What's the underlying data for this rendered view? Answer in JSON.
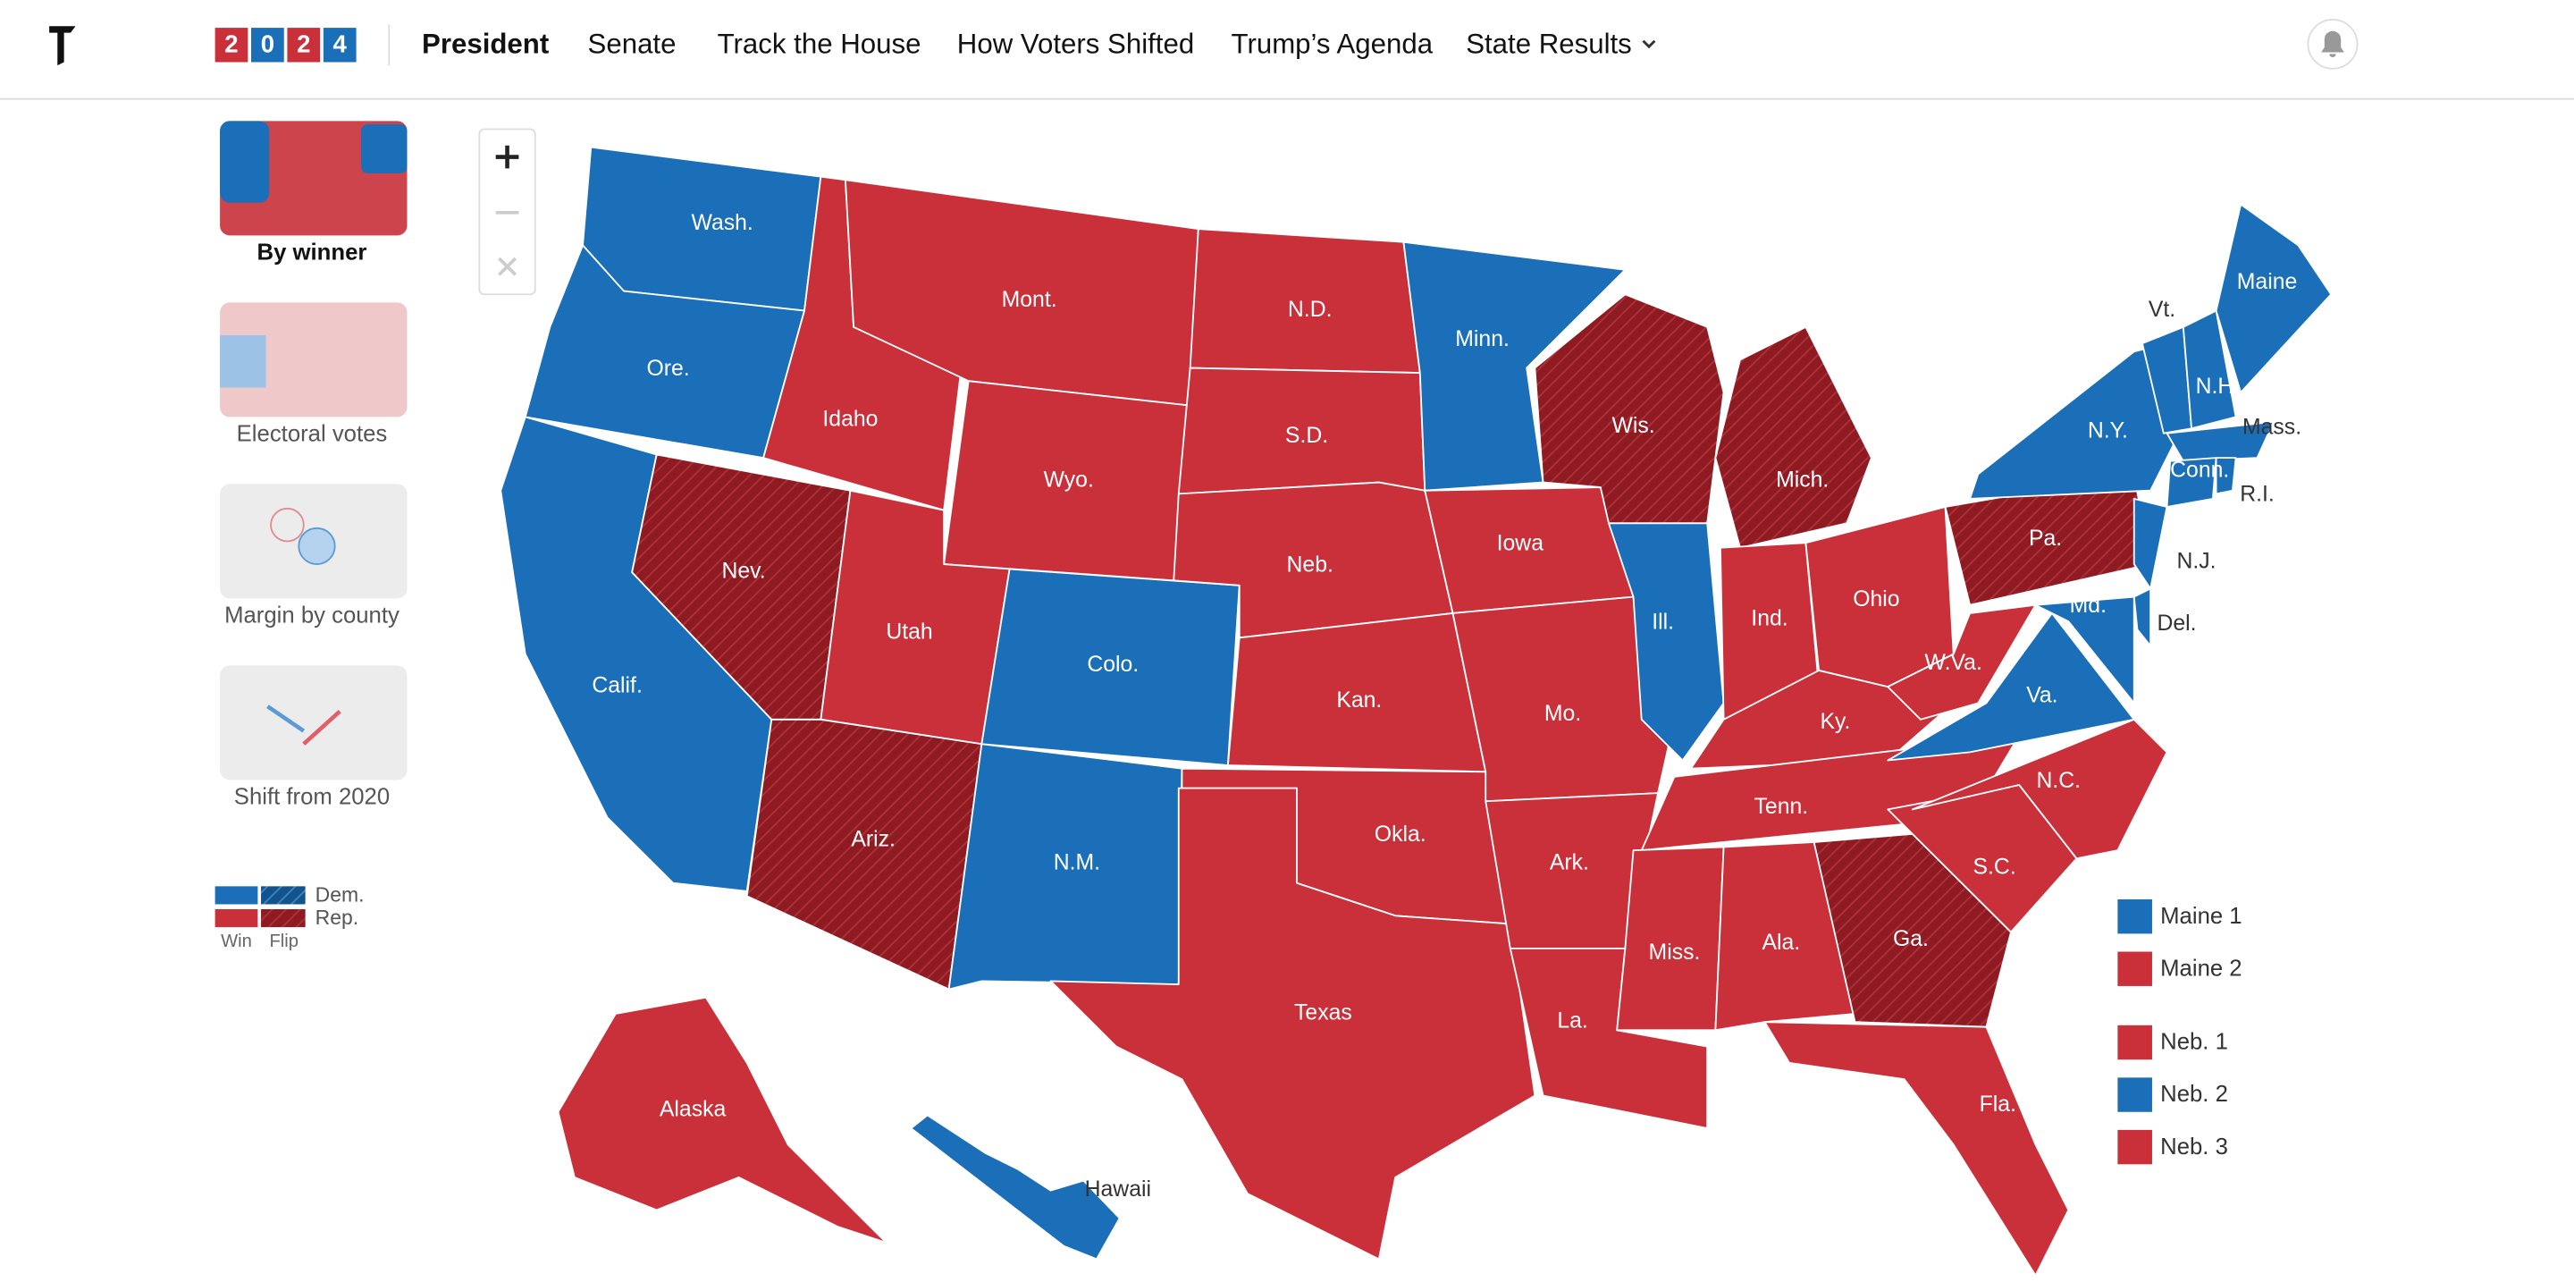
{
  "header": {
    "badge": [
      "2",
      "0",
      "2",
      "4"
    ],
    "nav": [
      "President",
      "Senate",
      "Track the House",
      "How Voters Shifted",
      "Trump’s Agenda",
      "State Results"
    ]
  },
  "sidebar": {
    "views": [
      "By winner",
      "Electoral votes",
      "Margin by county",
      "Shift from 2020"
    ],
    "legend": {
      "parties": [
        "Dem.",
        "Rep."
      ],
      "kinds": [
        "Win",
        "Flip"
      ]
    }
  },
  "colors": {
    "dem": "#1a6fb8",
    "rep": "#c9303a",
    "flip": "#8e1b22"
  },
  "states": [
    {
      "name": "Wash.",
      "winner": "dem",
      "flip": false
    },
    {
      "name": "Ore.",
      "winner": "dem",
      "flip": false
    },
    {
      "name": "Calif.",
      "winner": "dem",
      "flip": false
    },
    {
      "name": "Nev.",
      "winner": "rep",
      "flip": true
    },
    {
      "name": "Idaho",
      "winner": "rep",
      "flip": false
    },
    {
      "name": "Mont.",
      "winner": "rep",
      "flip": false
    },
    {
      "name": "Wyo.",
      "winner": "rep",
      "flip": false
    },
    {
      "name": "Utah",
      "winner": "rep",
      "flip": false
    },
    {
      "name": "Colo.",
      "winner": "dem",
      "flip": false
    },
    {
      "name": "Ariz.",
      "winner": "rep",
      "flip": true
    },
    {
      "name": "N.M.",
      "winner": "dem",
      "flip": false
    },
    {
      "name": "N.D.",
      "winner": "rep",
      "flip": false
    },
    {
      "name": "S.D.",
      "winner": "rep",
      "flip": false
    },
    {
      "name": "Neb.",
      "winner": "rep",
      "flip": false
    },
    {
      "name": "Kan.",
      "winner": "rep",
      "flip": false
    },
    {
      "name": "Okla.",
      "winner": "rep",
      "flip": false
    },
    {
      "name": "Texas",
      "winner": "rep",
      "flip": false
    },
    {
      "name": "Minn.",
      "winner": "dem",
      "flip": false
    },
    {
      "name": "Iowa",
      "winner": "rep",
      "flip": false
    },
    {
      "name": "Mo.",
      "winner": "rep",
      "flip": false
    },
    {
      "name": "Ark.",
      "winner": "rep",
      "flip": false
    },
    {
      "name": "La.",
      "winner": "rep",
      "flip": false
    },
    {
      "name": "Wis.",
      "winner": "rep",
      "flip": true
    },
    {
      "name": "Ill.",
      "winner": "dem",
      "flip": false
    },
    {
      "name": "Mich.",
      "winner": "rep",
      "flip": true
    },
    {
      "name": "Ind.",
      "winner": "rep",
      "flip": false
    },
    {
      "name": "Ohio",
      "winner": "rep",
      "flip": false
    },
    {
      "name": "Ky.",
      "winner": "rep",
      "flip": false
    },
    {
      "name": "Tenn.",
      "winner": "rep",
      "flip": false
    },
    {
      "name": "Miss.",
      "winner": "rep",
      "flip": false
    },
    {
      "name": "Ala.",
      "winner": "rep",
      "flip": false
    },
    {
      "name": "Ga.",
      "winner": "rep",
      "flip": true
    },
    {
      "name": "Fla.",
      "winner": "rep",
      "flip": false
    },
    {
      "name": "S.C.",
      "winner": "rep",
      "flip": false
    },
    {
      "name": "N.C.",
      "winner": "rep",
      "flip": false
    },
    {
      "name": "Va.",
      "winner": "dem",
      "flip": false
    },
    {
      "name": "W.Va.",
      "winner": "rep",
      "flip": false
    },
    {
      "name": "Pa.",
      "winner": "rep",
      "flip": true
    },
    {
      "name": "N.Y.",
      "winner": "dem",
      "flip": false
    },
    {
      "name": "N.J.",
      "winner": "dem",
      "flip": false
    },
    {
      "name": "Del.",
      "winner": "dem",
      "flip": false
    },
    {
      "name": "Md.",
      "winner": "dem",
      "flip": false
    },
    {
      "name": "Vt.",
      "winner": "dem",
      "flip": false
    },
    {
      "name": "N.H.",
      "winner": "dem",
      "flip": false
    },
    {
      "name": "Maine",
      "winner": "dem",
      "flip": false
    },
    {
      "name": "Mass.",
      "winner": "dem",
      "flip": false
    },
    {
      "name": "Conn.",
      "winner": "dem",
      "flip": false
    },
    {
      "name": "R.I.",
      "winner": "dem",
      "flip": false
    },
    {
      "name": "Alaska",
      "winner": "rep",
      "flip": false
    },
    {
      "name": "Hawaii",
      "winner": "dem",
      "flip": false
    }
  ],
  "districts": [
    {
      "name": "Maine 1",
      "winner": "dem"
    },
    {
      "name": "Maine 2",
      "winner": "rep"
    },
    {
      "name": "Neb. 1",
      "winner": "rep"
    },
    {
      "name": "Neb. 2",
      "winner": "dem"
    },
    {
      "name": "Neb. 3",
      "winner": "rep"
    }
  ]
}
